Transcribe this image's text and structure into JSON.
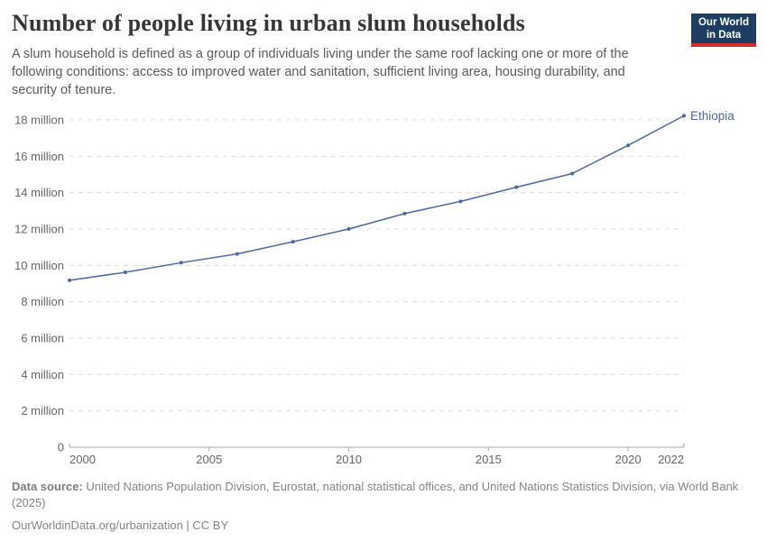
{
  "header": {
    "title": "Number of people living in urban slum households",
    "subtitle": "A slum household is defined as a group of individuals living under the same roof lacking one or more of the following conditions: access to improved water and sanitation, sufficient living area, housing durability, and security of tenure.",
    "logo": {
      "line1": "Our World",
      "line2": "in Data",
      "bg_color": "#1d3d63",
      "accent_color": "#cf3130"
    }
  },
  "chart_data": {
    "type": "line",
    "title": "Number of people living in urban slum households",
    "x": [
      2000,
      2002,
      2004,
      2006,
      2008,
      2010,
      2012,
      2014,
      2016,
      2018,
      2020,
      2022
    ],
    "series": [
      {
        "name": "Ethiopia",
        "values": [
          9.18,
          9.62,
          10.15,
          10.63,
          11.3,
          12.0,
          12.85,
          13.52,
          14.3,
          15.05,
          16.6,
          18.23
        ]
      }
    ],
    "unit": "million",
    "xlabel": "",
    "ylabel": "",
    "xlim": [
      2000,
      2022
    ],
    "ylim": [
      0,
      18.25
    ],
    "x_ticks": [
      2000,
      2005,
      2010,
      2015,
      2020,
      2022
    ],
    "y_ticks": [
      0,
      2,
      4,
      6,
      8,
      10,
      12,
      14,
      16,
      18
    ],
    "y_tick_suffix": " million",
    "grid": "dashed horizontal gridlines",
    "legend_position": "end-of-line label",
    "colors": {
      "line": "#4c6a9c",
      "series_label": "#4c6a9c",
      "grid": "#dcdcdc",
      "axis": "#a8a8a8",
      "tick_label": "#666666"
    }
  },
  "footer": {
    "source_label": "Data source:",
    "source_text": " United Nations Population Division, Eurostat, national statistical offices, and United Nations Statistics Division, via World Bank (2025)",
    "link_line": "OurWorldinData.org/urbanization | CC BY"
  }
}
